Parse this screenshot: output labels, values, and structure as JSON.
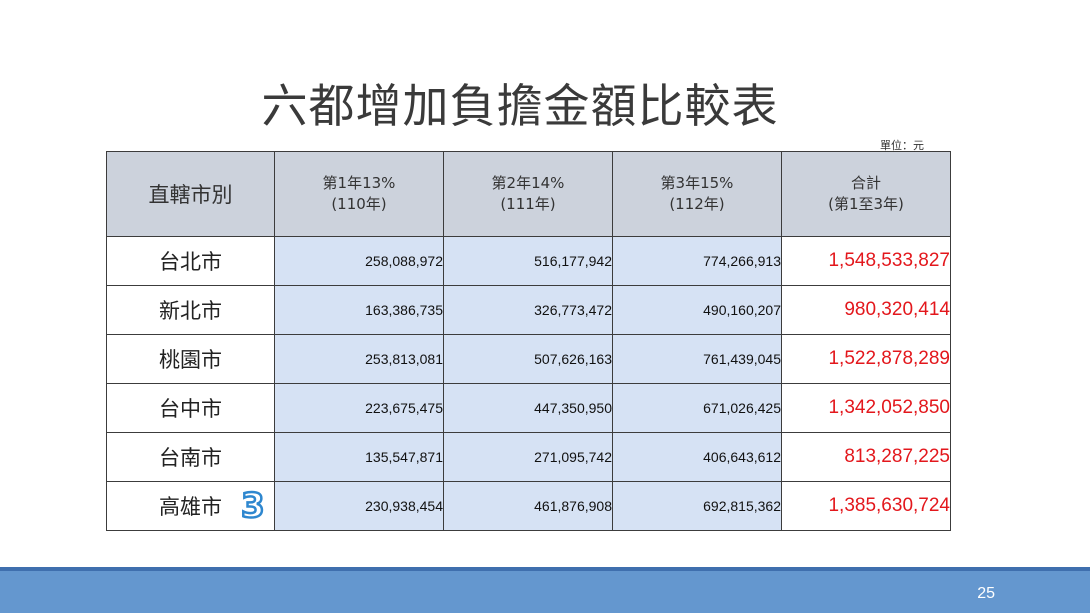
{
  "title": "六都增加負擔金額比較表",
  "unit_label": "單位：元",
  "table": {
    "header": {
      "city": "直轄市別",
      "year1_line1": "第1年13%",
      "year1_line2": "(110年)",
      "year2_line1": "第2年14%",
      "year2_line2": "(111年)",
      "year3_line1": "第3年15%",
      "year3_line2": "(112年)",
      "total_line1": "合計",
      "total_line2": "(第1至3年)"
    },
    "rows": [
      {
        "city": "台北市",
        "y1": "258,088,972",
        "y2": "516,177,942",
        "y3": "774,266,913",
        "total": "1,548,533,827"
      },
      {
        "city": "新北市",
        "y1": "163,386,735",
        "y2": "326,773,472",
        "y3": "490,160,207",
        "total": "980,320,414"
      },
      {
        "city": "桃園市",
        "y1": "253,813,081",
        "y2": "507,626,163",
        "y3": "761,439,045",
        "total": "1,522,878,289"
      },
      {
        "city": "台中市",
        "y1": "223,675,475",
        "y2": "447,350,950",
        "y3": "671,026,425",
        "total": "1,342,052,850"
      },
      {
        "city": "台南市",
        "y1": "135,547,871",
        "y2": "271,095,742",
        "y3": "406,643,612",
        "total": "813,287,225"
      },
      {
        "city": "高雄市",
        "y1": "230,938,454",
        "y2": "461,876,908",
        "y3": "692,815,362",
        "total": "1,385,630,724"
      }
    ]
  },
  "badge": "3",
  "page_number": "25",
  "colors": {
    "header_bg": "#ccd2dc",
    "number_cell_bg": "#d6e2f4",
    "total_text": "#e3171c",
    "footer_bar": "#6497cf"
  }
}
